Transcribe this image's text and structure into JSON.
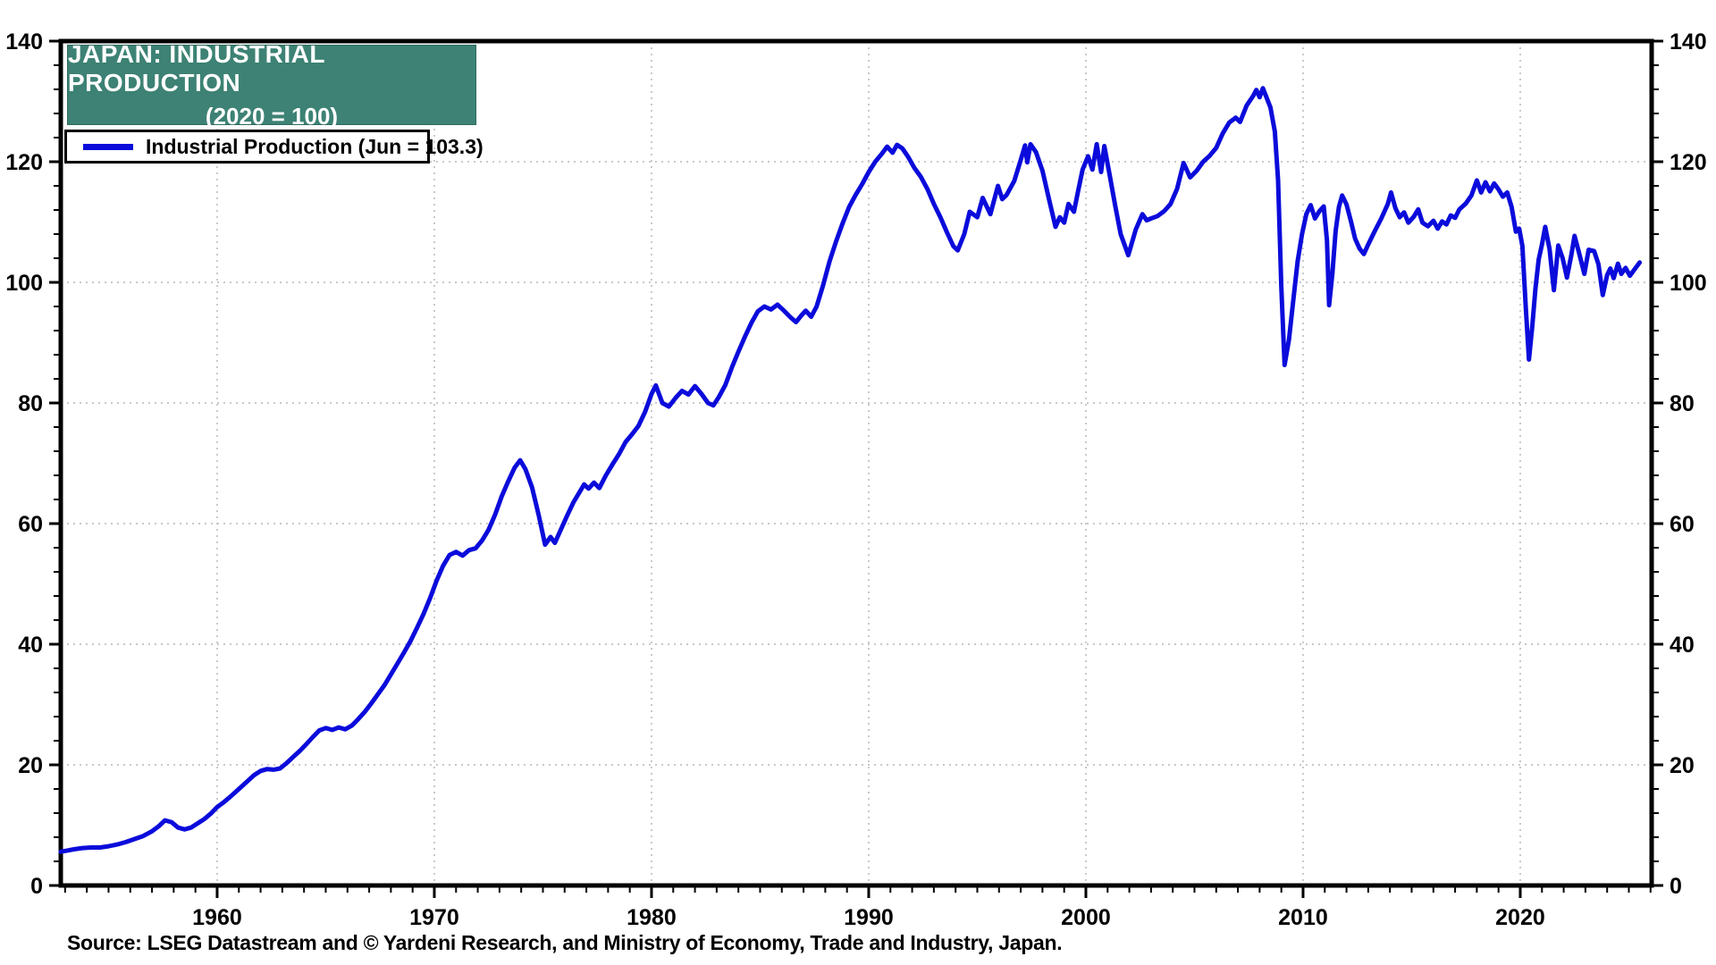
{
  "header": {
    "title_line1": "JAPAN: INDUSTRIAL PRODUCTION",
    "title_line2": "(2020 = 100)",
    "title_bg_color": "#3d8274",
    "title_text_color": "#ffffff"
  },
  "legend": {
    "label": "Industrial Production (Jun = 103.3)",
    "line_color": "#0b0bdb"
  },
  "source": {
    "text": "Source: LSEG Datastream and © Yardeni Research, and Ministry of Economy, Trade and Industry, Japan."
  },
  "chart_data": {
    "type": "line",
    "title": "JAPAN: INDUSTRIAL PRODUCTION (2020 = 100)",
    "series_name": "Industrial Production",
    "last_point_label": "Jun = 103.3",
    "line_color": "#0b0bdb",
    "grid_color": "#c9c9c9",
    "axis_color": "#000000",
    "grid_on": true,
    "legend_position": "top-left",
    "xlabel": "",
    "ylabel": "",
    "x_range": [
      1952.8,
      2026.05
    ],
    "ylim": [
      0,
      140
    ],
    "y_major_step": 20,
    "y_minor_step": 4,
    "x_minor_step": 1,
    "y_tick_labels": [
      "0",
      "20",
      "40",
      "60",
      "80",
      "100",
      "120",
      "140"
    ],
    "x_tick_labels": [
      "1960",
      "1970",
      "1980",
      "1990",
      "2000",
      "2010",
      "2020"
    ],
    "x_tick_years": [
      1960,
      1970,
      1980,
      1990,
      2000,
      2010,
      2020
    ],
    "points": [
      [
        1952.8,
        5.6
      ],
      [
        1953.1,
        5.8
      ],
      [
        1953.4,
        6.0
      ],
      [
        1953.8,
        6.2
      ],
      [
        1954.2,
        6.3
      ],
      [
        1954.6,
        6.3
      ],
      [
        1955.0,
        6.5
      ],
      [
        1955.4,
        6.8
      ],
      [
        1955.8,
        7.2
      ],
      [
        1956.2,
        7.7
      ],
      [
        1956.6,
        8.2
      ],
      [
        1957.0,
        9.0
      ],
      [
        1957.3,
        9.8
      ],
      [
        1957.6,
        10.8
      ],
      [
        1957.9,
        10.5
      ],
      [
        1958.2,
        9.6
      ],
      [
        1958.5,
        9.3
      ],
      [
        1958.8,
        9.6
      ],
      [
        1959.1,
        10.3
      ],
      [
        1959.4,
        11.0
      ],
      [
        1959.7,
        11.9
      ],
      [
        1960.0,
        13.0
      ],
      [
        1960.3,
        13.8
      ],
      [
        1960.6,
        14.7
      ],
      [
        1961.0,
        16.0
      ],
      [
        1961.4,
        17.3
      ],
      [
        1961.7,
        18.3
      ],
      [
        1962.0,
        19.0
      ],
      [
        1962.3,
        19.3
      ],
      [
        1962.6,
        19.2
      ],
      [
        1962.9,
        19.4
      ],
      [
        1963.2,
        20.3
      ],
      [
        1963.5,
        21.3
      ],
      [
        1963.8,
        22.3
      ],
      [
        1964.1,
        23.4
      ],
      [
        1964.4,
        24.6
      ],
      [
        1964.7,
        25.7
      ],
      [
        1965.0,
        26.1
      ],
      [
        1965.3,
        25.8
      ],
      [
        1965.6,
        26.2
      ],
      [
        1965.9,
        25.9
      ],
      [
        1966.2,
        26.5
      ],
      [
        1966.5,
        27.6
      ],
      [
        1966.8,
        28.8
      ],
      [
        1967.1,
        30.2
      ],
      [
        1967.4,
        31.7
      ],
      [
        1967.7,
        33.2
      ],
      [
        1968.0,
        35.0
      ],
      [
        1968.3,
        36.8
      ],
      [
        1968.6,
        38.6
      ],
      [
        1968.9,
        40.5
      ],
      [
        1969.2,
        42.7
      ],
      [
        1969.5,
        45.0
      ],
      [
        1969.8,
        47.6
      ],
      [
        1970.1,
        50.5
      ],
      [
        1970.4,
        53.0
      ],
      [
        1970.7,
        54.8
      ],
      [
        1971.0,
        55.3
      ],
      [
        1971.3,
        54.7
      ],
      [
        1971.6,
        55.6
      ],
      [
        1971.9,
        55.9
      ],
      [
        1972.2,
        57.2
      ],
      [
        1972.5,
        59.0
      ],
      [
        1972.8,
        61.5
      ],
      [
        1973.1,
        64.5
      ],
      [
        1973.4,
        67.0
      ],
      [
        1973.7,
        69.3
      ],
      [
        1973.95,
        70.5
      ],
      [
        1974.2,
        69.0
      ],
      [
        1974.5,
        66.0
      ],
      [
        1974.8,
        61.5
      ],
      [
        1975.1,
        56.5
      ],
      [
        1975.35,
        57.8
      ],
      [
        1975.55,
        56.8
      ],
      [
        1975.8,
        58.8
      ],
      [
        1976.1,
        61.2
      ],
      [
        1976.4,
        63.5
      ],
      [
        1976.7,
        65.3
      ],
      [
        1976.9,
        66.5
      ],
      [
        1977.1,
        65.8
      ],
      [
        1977.35,
        66.8
      ],
      [
        1977.6,
        65.9
      ],
      [
        1977.9,
        68.0
      ],
      [
        1978.2,
        69.8
      ],
      [
        1978.5,
        71.5
      ],
      [
        1978.8,
        73.5
      ],
      [
        1979.1,
        74.8
      ],
      [
        1979.4,
        76.2
      ],
      [
        1979.7,
        78.5
      ],
      [
        1980.0,
        81.5
      ],
      [
        1980.2,
        82.9
      ],
      [
        1980.5,
        80.0
      ],
      [
        1980.8,
        79.4
      ],
      [
        1981.1,
        80.8
      ],
      [
        1981.4,
        82.0
      ],
      [
        1981.7,
        81.4
      ],
      [
        1982.0,
        82.8
      ],
      [
        1982.3,
        81.5
      ],
      [
        1982.6,
        80.0
      ],
      [
        1982.85,
        79.6
      ],
      [
        1983.1,
        81.0
      ],
      [
        1983.4,
        83.0
      ],
      [
        1983.7,
        85.9
      ],
      [
        1984.0,
        88.5
      ],
      [
        1984.3,
        91.0
      ],
      [
        1984.6,
        93.3
      ],
      [
        1984.9,
        95.2
      ],
      [
        1985.2,
        96.0
      ],
      [
        1985.5,
        95.5
      ],
      [
        1985.8,
        96.3
      ],
      [
        1986.1,
        95.3
      ],
      [
        1986.4,
        94.2
      ],
      [
        1986.65,
        93.4
      ],
      [
        1986.9,
        94.5
      ],
      [
        1987.1,
        95.3
      ],
      [
        1987.35,
        94.3
      ],
      [
        1987.6,
        96.0
      ],
      [
        1987.9,
        99.5
      ],
      [
        1988.2,
        103.5
      ],
      [
        1988.5,
        106.8
      ],
      [
        1988.8,
        109.8
      ],
      [
        1989.1,
        112.5
      ],
      [
        1989.4,
        114.5
      ],
      [
        1989.7,
        116.3
      ],
      [
        1990.0,
        118.3
      ],
      [
        1990.3,
        120.0
      ],
      [
        1990.6,
        121.3
      ],
      [
        1990.85,
        122.5
      ],
      [
        1991.1,
        121.5
      ],
      [
        1991.3,
        122.8
      ],
      [
        1991.55,
        122.2
      ],
      [
        1991.8,
        120.9
      ],
      [
        1992.1,
        119.0
      ],
      [
        1992.4,
        117.5
      ],
      [
        1992.7,
        115.5
      ],
      [
        1993.0,
        113.0
      ],
      [
        1993.3,
        110.8
      ],
      [
        1993.6,
        108.3
      ],
      [
        1993.9,
        106.0
      ],
      [
        1994.1,
        105.3
      ],
      [
        1994.4,
        108.0
      ],
      [
        1994.65,
        111.7
      ],
      [
        1995.0,
        110.8
      ],
      [
        1995.25,
        114.0
      ],
      [
        1995.6,
        111.3
      ],
      [
        1995.95,
        116.0
      ],
      [
        1996.15,
        113.8
      ],
      [
        1996.35,
        114.5
      ],
      [
        1996.7,
        116.8
      ],
      [
        1997.0,
        120.3
      ],
      [
        1997.2,
        122.7
      ],
      [
        1997.3,
        119.9
      ],
      [
        1997.45,
        122.9
      ],
      [
        1997.7,
        121.6
      ],
      [
        1998.0,
        118.5
      ],
      [
        1998.3,
        113.8
      ],
      [
        1998.6,
        109.2
      ],
      [
        1998.8,
        110.8
      ],
      [
        1999.0,
        109.9
      ],
      [
        1999.2,
        113.0
      ],
      [
        1999.45,
        111.7
      ],
      [
        1999.65,
        115.3
      ],
      [
        1999.85,
        118.7
      ],
      [
        2000.1,
        120.9
      ],
      [
        2000.3,
        118.7
      ],
      [
        2000.5,
        122.9
      ],
      [
        2000.7,
        118.3
      ],
      [
        2000.85,
        122.6
      ],
      [
        2001.1,
        117.7
      ],
      [
        2001.35,
        112.7
      ],
      [
        2001.6,
        108.0
      ],
      [
        2001.95,
        104.5
      ],
      [
        2002.3,
        108.8
      ],
      [
        2002.6,
        111.3
      ],
      [
        2002.8,
        110.3
      ],
      [
        2003.0,
        110.6
      ],
      [
        2003.3,
        111.0
      ],
      [
        2003.6,
        111.8
      ],
      [
        2003.9,
        113.0
      ],
      [
        2004.2,
        115.5
      ],
      [
        2004.5,
        119.8
      ],
      [
        2004.8,
        117.4
      ],
      [
        2005.1,
        118.5
      ],
      [
        2005.4,
        120.0
      ],
      [
        2005.7,
        121.0
      ],
      [
        2006.0,
        122.3
      ],
      [
        2006.3,
        124.7
      ],
      [
        2006.6,
        126.5
      ],
      [
        2006.9,
        127.3
      ],
      [
        2007.1,
        126.6
      ],
      [
        2007.4,
        129.3
      ],
      [
        2007.7,
        130.9
      ],
      [
        2007.85,
        131.9
      ],
      [
        2008.0,
        130.7
      ],
      [
        2008.15,
        132.2
      ],
      [
        2008.3,
        130.8
      ],
      [
        2008.5,
        129.0
      ],
      [
        2008.7,
        125.0
      ],
      [
        2008.85,
        117.0
      ],
      [
        2009.0,
        99.0
      ],
      [
        2009.15,
        86.3
      ],
      [
        2009.35,
        90.5
      ],
      [
        2009.55,
        97.0
      ],
      [
        2009.75,
        103.5
      ],
      [
        2009.95,
        108.0
      ],
      [
        2010.15,
        111.3
      ],
      [
        2010.35,
        112.8
      ],
      [
        2010.55,
        110.6
      ],
      [
        2010.75,
        111.8
      ],
      [
        2010.95,
        112.6
      ],
      [
        2011.1,
        107.0
      ],
      [
        2011.2,
        96.2
      ],
      [
        2011.35,
        101.5
      ],
      [
        2011.5,
        108.5
      ],
      [
        2011.65,
        112.5
      ],
      [
        2011.8,
        114.4
      ],
      [
        2012.0,
        112.9
      ],
      [
        2012.2,
        110.2
      ],
      [
        2012.4,
        107.2
      ],
      [
        2012.6,
        105.6
      ],
      [
        2012.8,
        104.7
      ],
      [
        2013.0,
        106.3
      ],
      [
        2013.3,
        108.5
      ],
      [
        2013.6,
        110.6
      ],
      [
        2013.9,
        113.0
      ],
      [
        2014.05,
        114.9
      ],
      [
        2014.25,
        112.3
      ],
      [
        2014.45,
        110.8
      ],
      [
        2014.65,
        111.6
      ],
      [
        2014.85,
        109.9
      ],
      [
        2015.1,
        110.9
      ],
      [
        2015.3,
        112.1
      ],
      [
        2015.5,
        109.9
      ],
      [
        2015.75,
        109.3
      ],
      [
        2016.0,
        110.2
      ],
      [
        2016.2,
        108.9
      ],
      [
        2016.4,
        110.1
      ],
      [
        2016.6,
        109.6
      ],
      [
        2016.8,
        111.1
      ],
      [
        2017.0,
        110.7
      ],
      [
        2017.2,
        112.1
      ],
      [
        2017.5,
        113.1
      ],
      [
        2017.75,
        114.4
      ],
      [
        2018.0,
        116.9
      ],
      [
        2018.2,
        114.9
      ],
      [
        2018.4,
        116.6
      ],
      [
        2018.6,
        115.1
      ],
      [
        2018.8,
        116.4
      ],
      [
        2019.0,
        115.4
      ],
      [
        2019.2,
        114.2
      ],
      [
        2019.4,
        114.9
      ],
      [
        2019.6,
        112.5
      ],
      [
        2019.8,
        108.4
      ],
      [
        2019.95,
        108.9
      ],
      [
        2020.1,
        106.0
      ],
      [
        2020.25,
        96.0
      ],
      [
        2020.4,
        87.2
      ],
      [
        2020.55,
        92.5
      ],
      [
        2020.7,
        99.0
      ],
      [
        2020.85,
        103.8
      ],
      [
        2021.0,
        106.3
      ],
      [
        2021.15,
        109.2
      ],
      [
        2021.35,
        105.5
      ],
      [
        2021.55,
        98.7
      ],
      [
        2021.75,
        106.1
      ],
      [
        2021.95,
        104.0
      ],
      [
        2022.15,
        100.8
      ],
      [
        2022.35,
        104.5
      ],
      [
        2022.5,
        107.7
      ],
      [
        2022.7,
        105.0
      ],
      [
        2022.95,
        101.4
      ],
      [
        2023.15,
        105.4
      ],
      [
        2023.4,
        105.2
      ],
      [
        2023.6,
        103.0
      ],
      [
        2023.8,
        97.9
      ],
      [
        2024.0,
        101.2
      ],
      [
        2024.15,
        102.3
      ],
      [
        2024.3,
        100.7
      ],
      [
        2024.5,
        103.1
      ],
      [
        2024.65,
        101.4
      ],
      [
        2024.85,
        102.4
      ],
      [
        2025.05,
        101.1
      ],
      [
        2025.25,
        102.1
      ],
      [
        2025.5,
        103.3
      ]
    ]
  }
}
